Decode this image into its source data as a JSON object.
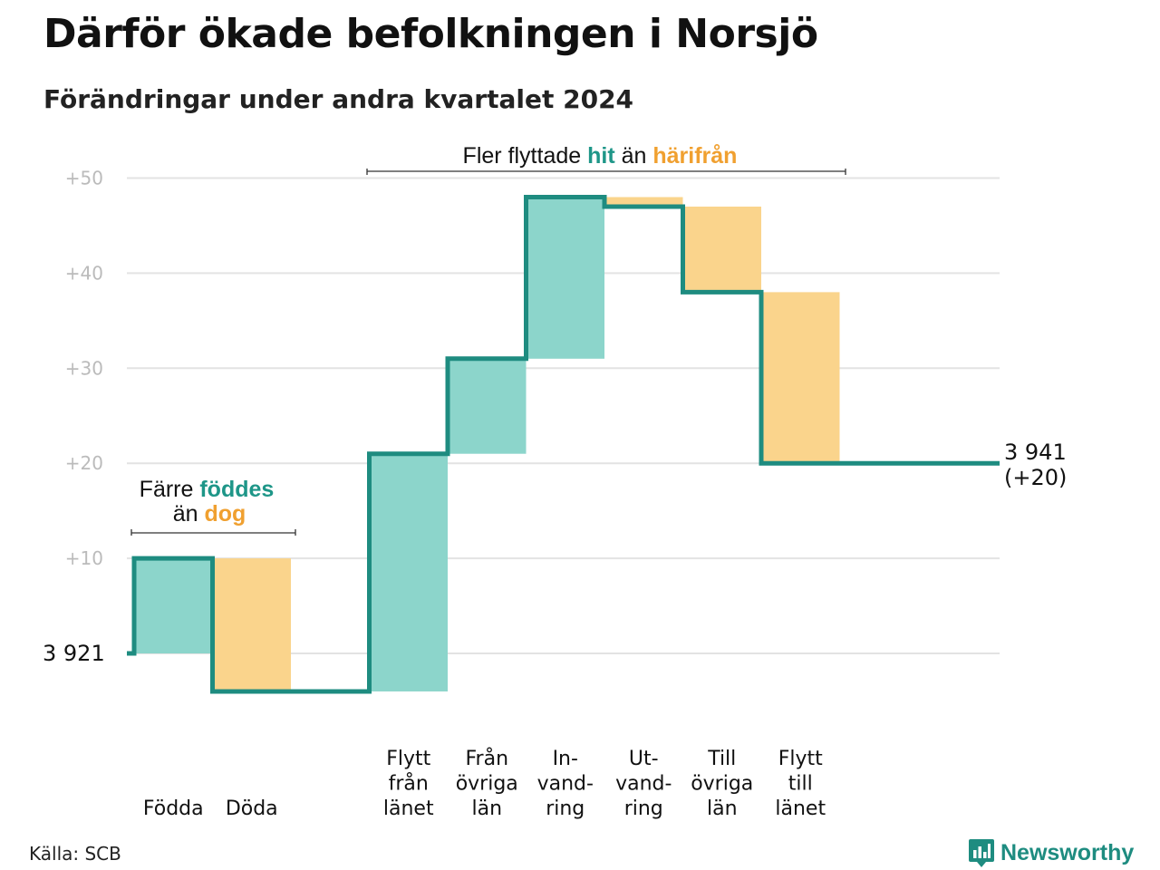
{
  "title": "Därför ökade befolkningen i Norsjö",
  "subtitle": "Förändringar under andra kvartalet 2024",
  "source": "Källa: SCB",
  "brand": {
    "name": "Newsworthy",
    "logo_icon": "newsworthy-bar-chart-bubble-icon"
  },
  "colors": {
    "increase": "#8cd5cb",
    "decrease": "#fad48c",
    "line": "#1e8c80",
    "accent_hit": "#1e9688",
    "accent_harifran": "#f0a030",
    "grid": "#e3e3e3",
    "tick": "#bbbbbb"
  },
  "chart_data": {
    "type": "waterfall",
    "start_value": 3921,
    "start_label": "3 921",
    "end_value": 3941,
    "end_label": "3 941",
    "end_change_label": "(+20)",
    "ylim": [
      -4,
      52
    ],
    "yticks": [
      10,
      20,
      30,
      40,
      50
    ],
    "ytick_labels": [
      "+10",
      "+20",
      "+30",
      "+40",
      "+50"
    ],
    "grid": true,
    "steps": [
      {
        "category": "Födda",
        "label_lines": [
          "Födda"
        ],
        "change": 10,
        "group": "natural"
      },
      {
        "category": "Döda",
        "label_lines": [
          "Döda"
        ],
        "change": -14,
        "group": "natural"
      },
      {
        "category": "Flytt från länet",
        "label_lines": [
          "Flytt",
          "från",
          "länet"
        ],
        "change": 25,
        "group": "migration"
      },
      {
        "category": "Från övriga län",
        "label_lines": [
          "Från",
          "övriga",
          "län"
        ],
        "change": 10,
        "group": "migration"
      },
      {
        "category": "Invandring",
        "label_lines": [
          "In-",
          "vand-",
          "ring"
        ],
        "change": 17,
        "group": "migration"
      },
      {
        "category": "Utvandring",
        "label_lines": [
          "Ut-",
          "vand-",
          "ring"
        ],
        "change": -1,
        "group": "migration"
      },
      {
        "category": "Till övriga län",
        "label_lines": [
          "Till",
          "övriga",
          "län"
        ],
        "change": -9,
        "group": "migration"
      },
      {
        "category": "Flytt till länet",
        "label_lines": [
          "Flytt",
          "till",
          "länet"
        ],
        "change": -18,
        "group": "migration"
      }
    ],
    "annotations": {
      "natural": {
        "line1": [
          {
            "text": "Färre ",
            "style": "plain"
          },
          {
            "text": "föddes",
            "style": "hit"
          }
        ],
        "line2": [
          {
            "text": "än ",
            "style": "plain"
          },
          {
            "text": "dog",
            "style": "harifran"
          }
        ]
      },
      "migration": {
        "line1": [
          {
            "text": "Fler flyttade ",
            "style": "plain"
          },
          {
            "text": "hit",
            "style": "hit"
          },
          {
            "text": " än ",
            "style": "plain"
          },
          {
            "text": "härifrån",
            "style": "harifran"
          }
        ]
      }
    }
  }
}
